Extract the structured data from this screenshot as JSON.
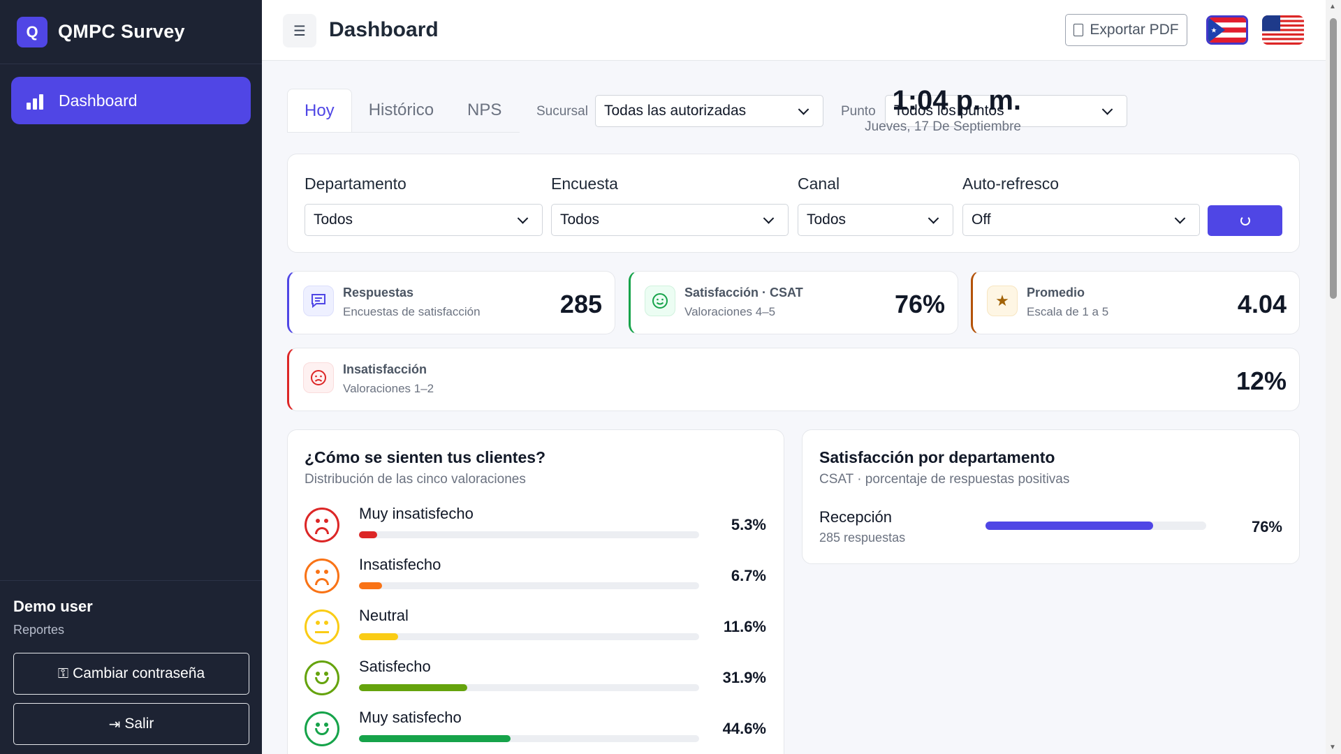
{
  "app": {
    "logo_letter": "Q",
    "name": "QMPC Survey"
  },
  "sidebar": {
    "nav": [
      {
        "label": "Dashboard",
        "icon": "bar-chart-icon",
        "active": true
      }
    ],
    "user": {
      "name": "Demo user",
      "role": "Reportes"
    },
    "buttons": {
      "change_password": "Cambiar contraseña",
      "logout": "Salir"
    }
  },
  "header": {
    "title": "Dashboard",
    "export_label": "Exportar PDF",
    "languages": [
      "Puerto Rico flag",
      "United States flag"
    ]
  },
  "tabs": [
    {
      "label": "Hoy",
      "active": true
    },
    {
      "label": "Histórico",
      "active": false
    },
    {
      "label": "NPS",
      "active": false
    }
  ],
  "top_filters": {
    "branch_label": "Sucursal",
    "branch_value": "Todas las autorizadas",
    "point_label": "Punto",
    "point_value": "Todos los puntos"
  },
  "clock": {
    "time": "1:04 p. m.",
    "date": "Jueves, 17 De Septiembre"
  },
  "filters": {
    "department_label": "Departamento",
    "department_value": "Todos",
    "survey_label": "Encuesta",
    "survey_value": "Todos",
    "channel_label": "Canal",
    "channel_value": "Todos",
    "refresh_label": "Auto-refresco",
    "refresh_value": "Off"
  },
  "kpis": {
    "responses": {
      "title": "Respuestas",
      "subtitle": "Encuestas de satisfacción",
      "value": "285",
      "color": "#4f46e5"
    },
    "csat": {
      "title": "Satisfacción · CSAT",
      "subtitle": "Valoraciones 4–5",
      "value": "76%",
      "color": "#16a34a"
    },
    "average": {
      "title": "Promedio",
      "subtitle": "Escala de 1 a 5",
      "value": "4.04",
      "color": "#b45309"
    },
    "dissatisfaction": {
      "title": "Insatisfacción",
      "subtitle": "Valoraciones 1–2",
      "value": "12%",
      "color": "#dc2626"
    }
  },
  "distribution": {
    "title": "¿Cómo se sienten tus clientes?",
    "subtitle": "Distribución de las cinco valoraciones",
    "items": [
      {
        "label": "Muy insatisfecho",
        "pct": "5.3%",
        "value": 5.3,
        "color": "#dc2626",
        "mood": "sad"
      },
      {
        "label": "Insatisfecho",
        "pct": "6.7%",
        "value": 6.7,
        "color": "#f97316",
        "mood": "sad"
      },
      {
        "label": "Neutral",
        "pct": "11.6%",
        "value": 11.6,
        "color": "#facc15",
        "mood": "neutral"
      },
      {
        "label": "Satisfecho",
        "pct": "31.9%",
        "value": 31.9,
        "color": "#65a30d",
        "mood": "happy"
      },
      {
        "label": "Muy satisfecho",
        "pct": "44.6%",
        "value": 44.6,
        "color": "#16a34a",
        "mood": "happy"
      }
    ]
  },
  "departments": {
    "title": "Satisfacción por departamento",
    "subtitle": "CSAT · porcentaje de respuestas positivas",
    "items": [
      {
        "name": "Recepción",
        "count": "285 respuestas",
        "pct": "76%",
        "value": 76
      }
    ]
  }
}
